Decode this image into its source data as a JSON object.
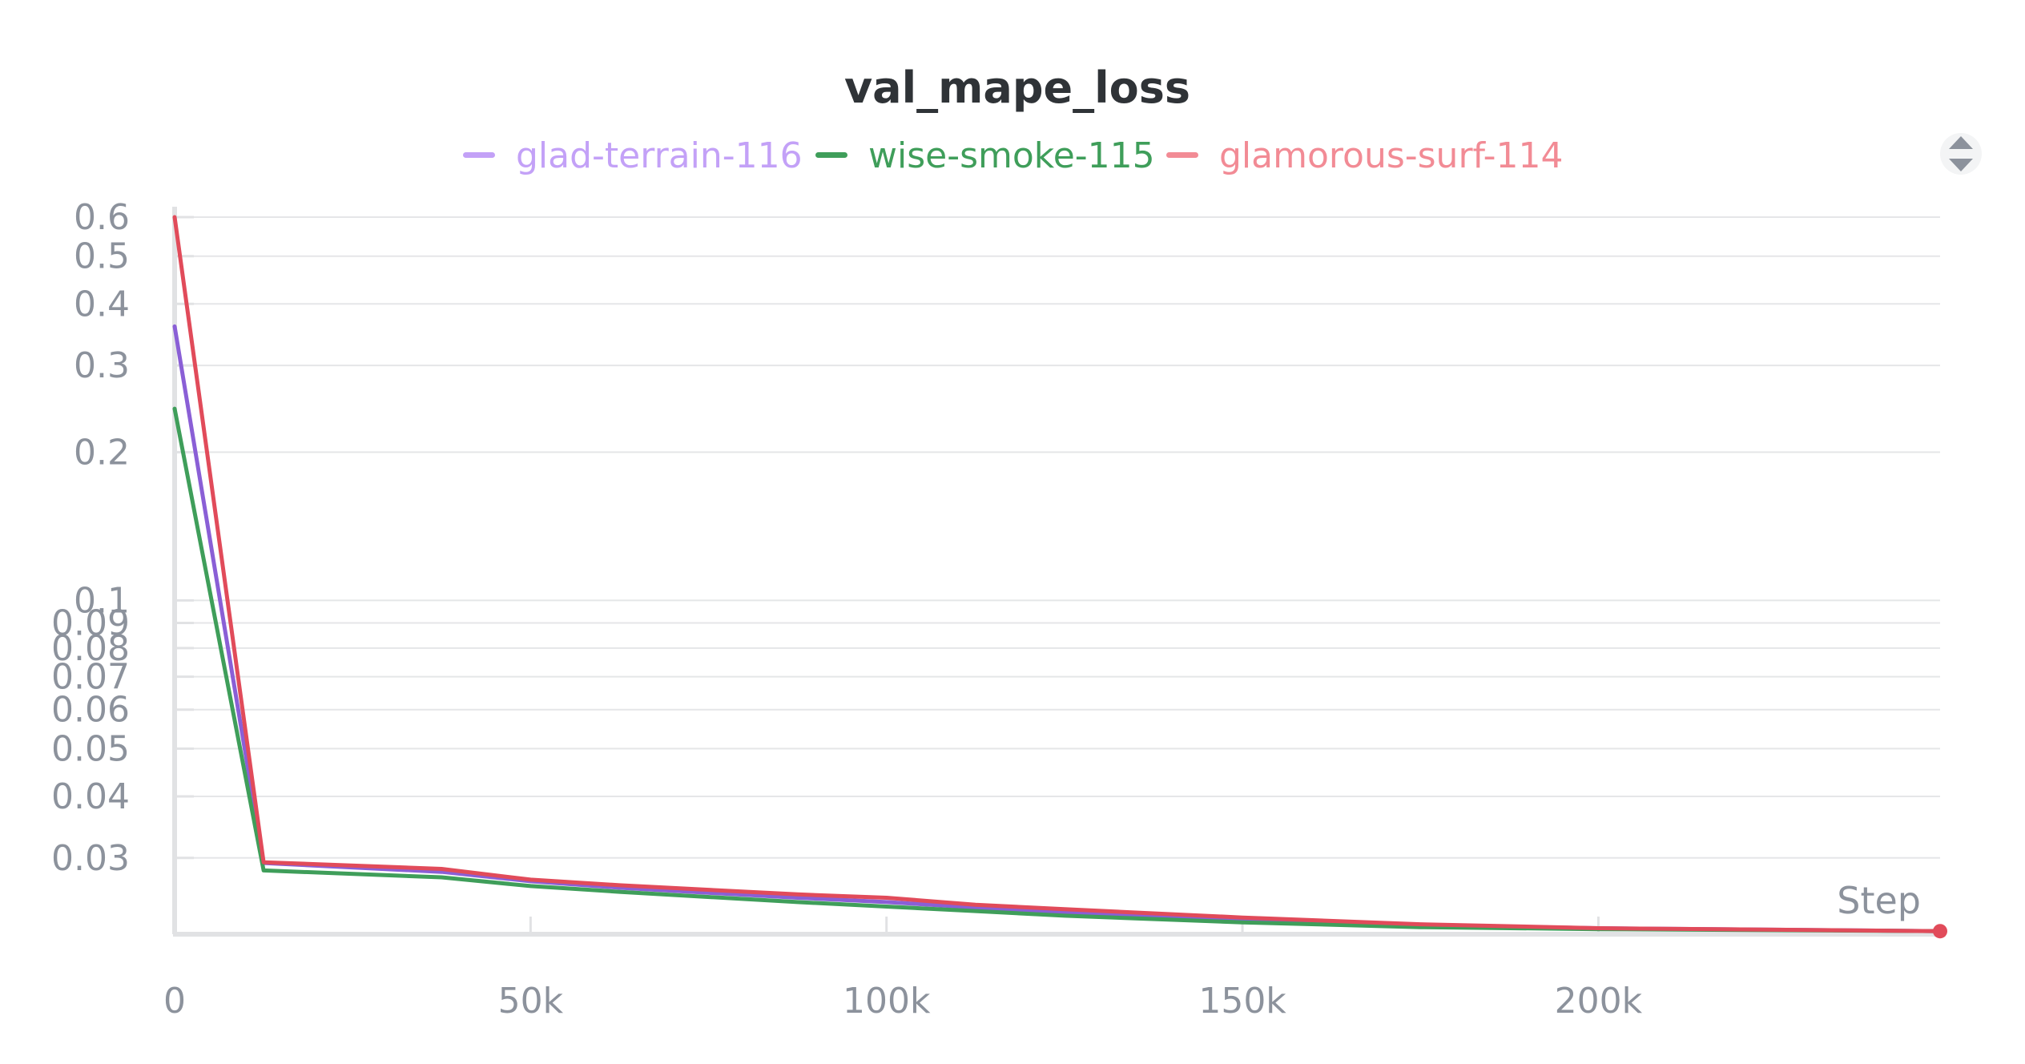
{
  "chart_data": {
    "type": "line",
    "title": "val_mape_loss",
    "xlabel": "Step",
    "ylabel": "",
    "y_scale": "log",
    "xlim": [
      0,
      248000
    ],
    "ylim": [
      0.021,
      0.63
    ],
    "x_ticks": [
      {
        "value": 0,
        "label": "0"
      },
      {
        "value": 50000,
        "label": "50k"
      },
      {
        "value": 100000,
        "label": "100k"
      },
      {
        "value": 150000,
        "label": "150k"
      },
      {
        "value": 200000,
        "label": "200k"
      }
    ],
    "y_ticks": [
      {
        "value": 0.6,
        "label": "0.6"
      },
      {
        "value": 0.5,
        "label": "0.5"
      },
      {
        "value": 0.4,
        "label": "0.4"
      },
      {
        "value": 0.3,
        "label": "0.3"
      },
      {
        "value": 0.2,
        "label": "0.2"
      },
      {
        "value": 0.1,
        "label": "0.1"
      },
      {
        "value": 0.09,
        "label": "0.09"
      },
      {
        "value": 0.08,
        "label": "0.08"
      },
      {
        "value": 0.07,
        "label": "0.07"
      },
      {
        "value": 0.06,
        "label": "0.06"
      },
      {
        "value": 0.05,
        "label": "0.05"
      },
      {
        "value": 0.04,
        "label": "0.04"
      },
      {
        "value": 0.03,
        "label": "0.03"
      }
    ],
    "grid": true,
    "legend_position": "top-center",
    "series": [
      {
        "name": "glad-terrain-116",
        "color": "#8a5fd6",
        "legend_color": "#c3a1f7",
        "x": [
          0,
          12500,
          37500,
          50000,
          62500,
          87500,
          100000,
          112500,
          125000,
          150000,
          175000,
          200000,
          248000
        ],
        "y": [
          0.36,
          0.0293,
          0.0281,
          0.0269,
          0.0261,
          0.0249,
          0.0244,
          0.0238,
          0.0233,
          0.0225,
          0.0219,
          0.0216,
          0.0213
        ]
      },
      {
        "name": "wise-smoke-115",
        "color": "#3f9e5a",
        "legend_color": "#3f9e5a",
        "x": [
          0,
          12500,
          37500,
          50000,
          62500,
          87500,
          100000,
          112500,
          125000,
          150000,
          175000,
          200000,
          248000
        ],
        "y": [
          0.245,
          0.0283,
          0.0274,
          0.0263,
          0.0256,
          0.0244,
          0.0239,
          0.0234,
          0.0229,
          0.0222,
          0.0217,
          0.0215,
          0.0213
        ]
      },
      {
        "name": "glamorous-surf-114",
        "color": "#e14b5a",
        "legend_color": "#f28b95",
        "x": [
          0,
          12500,
          37500,
          50000,
          62500,
          87500,
          100000,
          112500,
          125000,
          150000,
          175000,
          200000,
          248000
        ],
        "y": [
          0.6,
          0.0294,
          0.0285,
          0.0271,
          0.0264,
          0.0253,
          0.0249,
          0.0241,
          0.0236,
          0.0227,
          0.022,
          0.0216,
          0.0213
        ]
      }
    ]
  },
  "icons": {
    "legend_toggle": "chevron-up-down-icon"
  }
}
